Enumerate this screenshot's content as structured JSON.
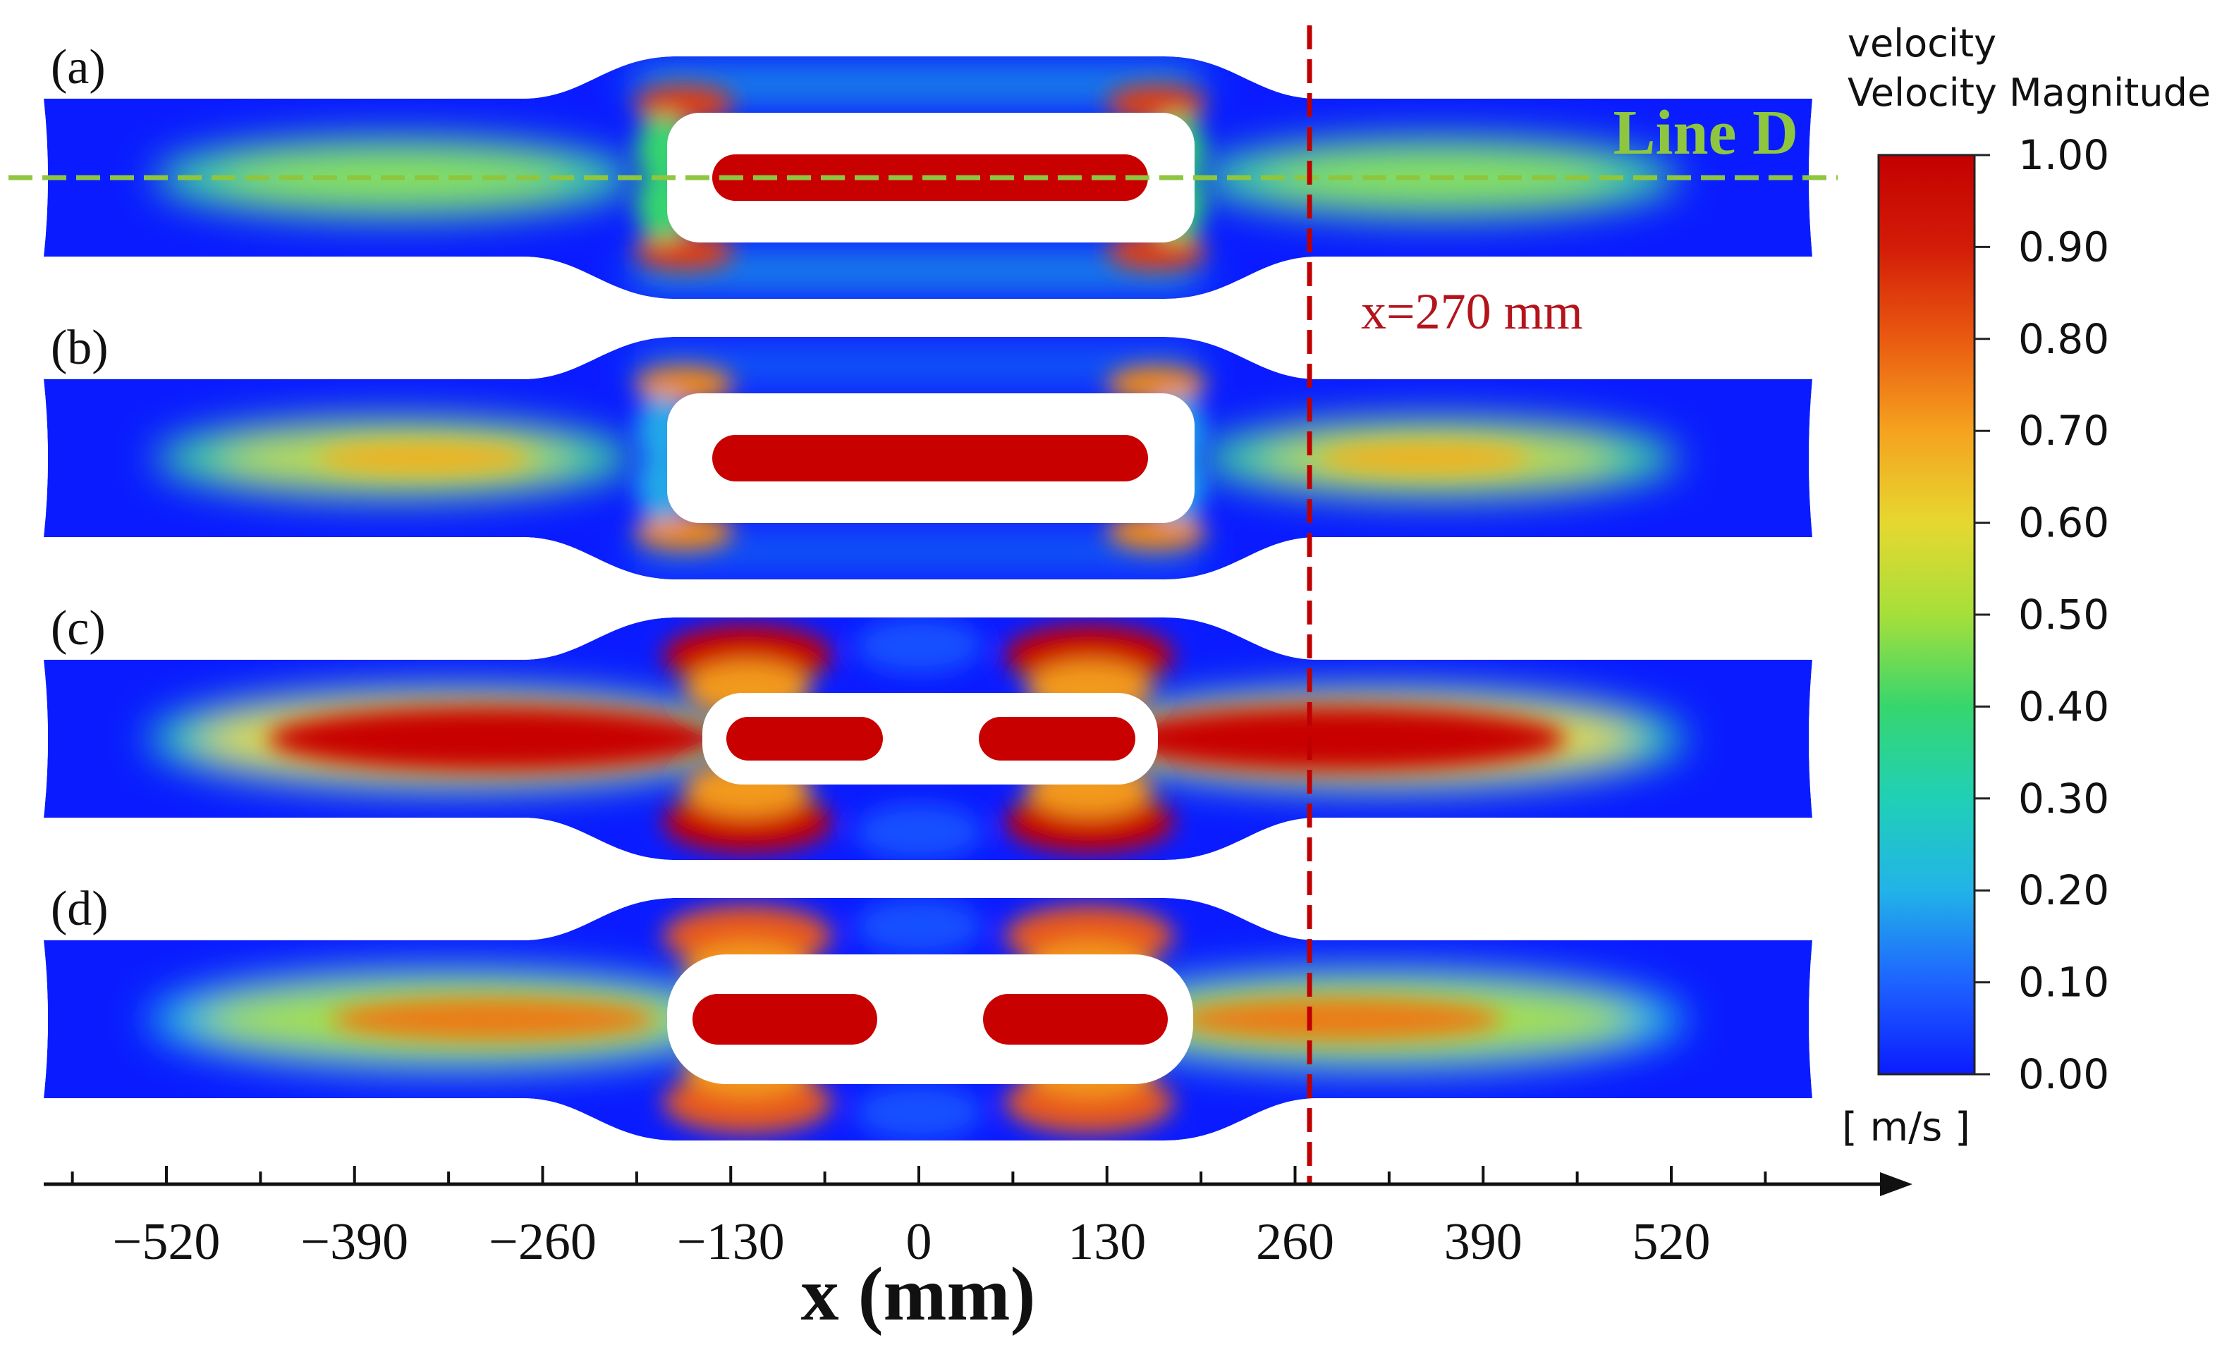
{
  "panels": [
    {
      "id": "a",
      "label": "(a)",
      "layout": "single"
    },
    {
      "id": "b",
      "label": "(b)",
      "layout": "single"
    },
    {
      "id": "c",
      "label": "(c)",
      "layout": "split"
    },
    {
      "id": "d",
      "label": "(d)",
      "layout": "split"
    }
  ],
  "annotations": {
    "line_d_label": "Line D",
    "x_marker_label": "x=270 mm",
    "x_marker_value_mm": 270
  },
  "colorbar": {
    "title_line1": "velocity",
    "title_line2": "Velocity Magnitude",
    "unit": "[ m/s ]",
    "min": 0.0,
    "max": 1.0,
    "ticks": [
      "1.00",
      "0.90",
      "0.80",
      "0.70",
      "0.60",
      "0.50",
      "0.40",
      "0.30",
      "0.20",
      "0.10",
      "0.00"
    ],
    "colors": [
      "#0b1cff",
      "#1e63ff",
      "#22b3e8",
      "#20d0b6",
      "#36d66e",
      "#a6df3a",
      "#e6d830",
      "#f5a21f",
      "#ea5a10",
      "#d31c08",
      "#c40000"
    ]
  },
  "axis": {
    "title": "x (mm)",
    "ticks": [
      "−520",
      "−390",
      "−260",
      "−130",
      "0",
      "130",
      "260",
      "390",
      "520"
    ],
    "tick_values": [
      -520,
      -390,
      -260,
      -130,
      0,
      130,
      260,
      390,
      520
    ]
  },
  "colors": {
    "field_blue": "#0a1cff",
    "hot_red": "#c80000",
    "line_d": "#8ec63f",
    "marker_red": "#c00000"
  }
}
